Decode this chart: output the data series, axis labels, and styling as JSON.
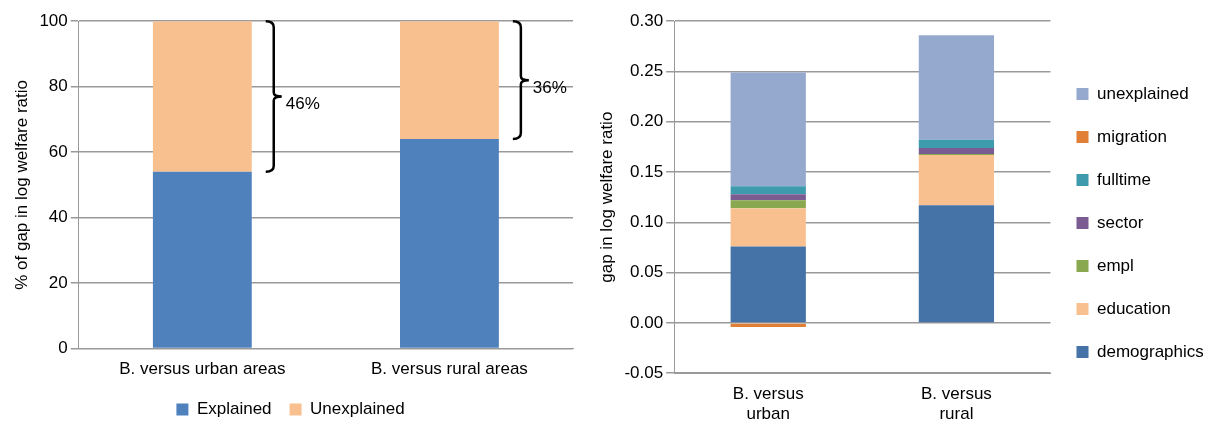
{
  "chart_data": [
    {
      "type": "bar",
      "stacked": true,
      "ylabel": "% of gap in log welfare ratio",
      "categories": [
        "B. versus urban areas",
        "B. versus rural areas"
      ],
      "ylim": [
        0,
        100
      ],
      "yticks": [
        0,
        20,
        40,
        60,
        80,
        100
      ],
      "grid": "y",
      "legend": "bottom",
      "series": [
        {
          "name": "Explained",
          "color": "#4f81bd",
          "values": [
            54,
            64
          ]
        },
        {
          "name": "Unexplained",
          "color": "#f9c08f",
          "values": [
            46,
            36
          ]
        }
      ],
      "annotations": [
        "46%",
        "36%"
      ]
    },
    {
      "type": "bar",
      "stacked": true,
      "ylabel": "gap in log welfare ratio",
      "categories": [
        "B. versus urban",
        "B. versus rural"
      ],
      "ylim": [
        -0.05,
        0.3
      ],
      "yticks": [
        {
          "value": -0.05,
          "label": "-0.05"
        },
        {
          "value": 0,
          "label": "0.00"
        },
        {
          "value": 0.05,
          "label": "0.05"
        },
        {
          "value": 0.1,
          "label": "0.10"
        },
        {
          "value": 0.15,
          "label": "0.15"
        },
        {
          "value": 0.2,
          "label": "0.20"
        },
        {
          "value": 0.25,
          "label": "0.25"
        },
        {
          "value": 0.3,
          "label": "0.30"
        }
      ],
      "grid": "y",
      "legend": "right",
      "series": [
        {
          "name": "demographics",
          "color": "#4572a7",
          "values": [
            0.076,
            0.117
          ]
        },
        {
          "name": "education",
          "color": "#f9c08f",
          "values": [
            0.038,
            0.05
          ]
        },
        {
          "name": "empl",
          "color": "#8aa84f",
          "values": [
            0.008,
            0.001
          ]
        },
        {
          "name": "sector",
          "color": "#7a5c93",
          "values": [
            0.006,
            0.006
          ]
        },
        {
          "name": "fulltime",
          "color": "#3e9aad",
          "values": [
            0.008,
            0.008
          ]
        },
        {
          "name": "migration",
          "color": "#e07f35",
          "values": [
            -0.004,
            0
          ]
        },
        {
          "name": "unexplained",
          "color": "#95a9cf",
          "values": [
            0.113,
            0.104
          ]
        }
      ]
    }
  ]
}
